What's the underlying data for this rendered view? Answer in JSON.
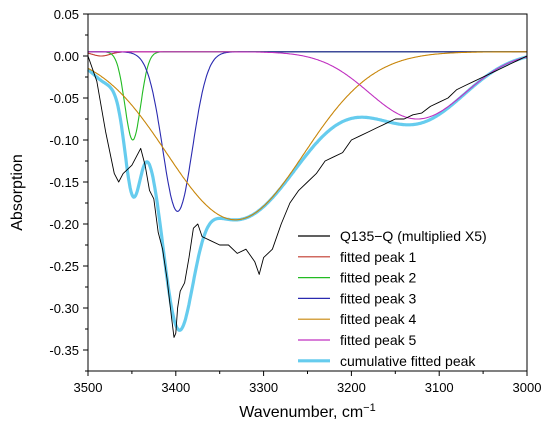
{
  "chart_data": {
    "type": "line",
    "title": "",
    "xlabel": "Wavenumber, cm",
    "xlabel_superscript": "−1",
    "ylabel": "Absorption",
    "xlim": [
      3500,
      3000
    ],
    "ylim": [
      -0.375,
      0.05
    ],
    "x_reversed": true,
    "x_ticks": [
      3500,
      3400,
      3300,
      3200,
      3100,
      3000
    ],
    "y_ticks": [
      0.05,
      0.0,
      -0.05,
      -0.1,
      -0.15,
      -0.2,
      -0.25,
      -0.3,
      -0.35
    ],
    "x_tick_labels": [
      "3500",
      "3400",
      "3300",
      "3200",
      "3100",
      "3000"
    ],
    "y_tick_labels": [
      "0.05",
      "0.00",
      "-0.05",
      "-0.10",
      "-0.15",
      "-0.20",
      "-0.25",
      "-0.30",
      "-0.35"
    ],
    "grid": false,
    "legend_position": "bottom-right",
    "baseline": 0.005,
    "series": [
      {
        "name": "Q135−Q (multiplied X5)",
        "kind": "measured",
        "color": "#000000",
        "x": [
          3500,
          3490,
          3480,
          3470,
          3465,
          3460,
          3455,
          3450,
          3445,
          3440,
          3435,
          3430,
          3425,
          3420,
          3415,
          3410,
          3405,
          3402,
          3400,
          3398,
          3395,
          3390,
          3385,
          3380,
          3375,
          3370,
          3360,
          3350,
          3340,
          3330,
          3320,
          3310,
          3305,
          3300,
          3290,
          3280,
          3270,
          3260,
          3250,
          3240,
          3230,
          3220,
          3210,
          3200,
          3190,
          3180,
          3170,
          3160,
          3150,
          3140,
          3130,
          3120,
          3110,
          3100,
          3090,
          3080,
          3070,
          3060,
          3050,
          3040,
          3030,
          3020,
          3010,
          3000
        ],
        "y": [
          0.0,
          -0.03,
          -0.09,
          -0.14,
          -0.15,
          -0.14,
          -0.135,
          -0.13,
          -0.12,
          -0.11,
          -0.13,
          -0.16,
          -0.17,
          -0.21,
          -0.23,
          -0.265,
          -0.31,
          -0.335,
          -0.33,
          -0.3,
          -0.28,
          -0.27,
          -0.24,
          -0.205,
          -0.2,
          -0.215,
          -0.22,
          -0.225,
          -0.225,
          -0.235,
          -0.23,
          -0.245,
          -0.26,
          -0.24,
          -0.23,
          -0.2,
          -0.175,
          -0.16,
          -0.15,
          -0.14,
          -0.125,
          -0.12,
          -0.115,
          -0.1,
          -0.095,
          -0.09,
          -0.085,
          -0.08,
          -0.075,
          -0.075,
          -0.07,
          -0.068,
          -0.06,
          -0.055,
          -0.05,
          -0.04,
          -0.035,
          -0.03,
          -0.025,
          -0.02,
          -0.015,
          -0.01,
          -0.005,
          0.0
        ]
      },
      {
        "name": "fitted peak 1",
        "kind": "gaussian",
        "color": "#c0392b",
        "center": 3485,
        "amplitude": -0.005,
        "width": 10
      },
      {
        "name": "fitted peak 2",
        "kind": "gaussian",
        "color": "#22bb22",
        "center": 3449,
        "amplitude": -0.105,
        "width": 9
      },
      {
        "name": "fitted peak 3",
        "kind": "gaussian",
        "color": "#2a2ab0",
        "center": 3398,
        "amplitude": -0.19,
        "width": 17
      },
      {
        "name": "fitted peak 4",
        "kind": "gaussian",
        "color": "#c8860a",
        "center": 3332,
        "amplitude": -0.2,
        "width": 78
      },
      {
        "name": "fitted peak 5",
        "kind": "gaussian",
        "color": "#c030c0",
        "center": 3125,
        "amplitude": -0.08,
        "width": 55
      },
      {
        "name": "cumulative fitted peak",
        "kind": "sum",
        "color": "#66ccee"
      }
    ]
  }
}
